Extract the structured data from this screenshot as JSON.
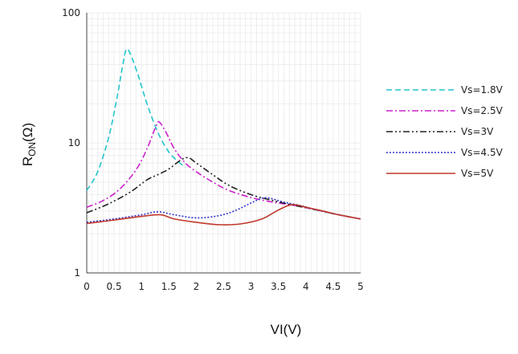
{
  "chart_data": {
    "type": "line",
    "title": "",
    "xlabel": "VI(V)",
    "ylabel_main": "R",
    "ylabel_sub": "ON",
    "ylabel_unit": "(Ω)",
    "y_scale": "log",
    "xlim": [
      0,
      5
    ],
    "ylim": [
      1,
      100
    ],
    "x_ticks": [
      "0",
      "0.5",
      "1",
      "1.5",
      "2",
      "2.5",
      "3",
      "3.5",
      "4",
      "4.5",
      "5"
    ],
    "y_ticks": [
      "1",
      "10",
      "100"
    ],
    "grid": true,
    "legend_position": "right",
    "series": [
      {
        "name": "Vs=1.8V",
        "color": "#22c4cc",
        "dash": "dashed",
        "x": [
          0,
          0.2,
          0.4,
          0.55,
          0.65,
          0.72,
          0.8,
          0.95,
          1.1,
          1.3,
          1.5,
          1.7,
          1.8
        ],
        "y": [
          4.3,
          6.0,
          11.0,
          22.0,
          38.0,
          52.0,
          48.0,
          32.0,
          20.0,
          12.0,
          8.5,
          7.0,
          6.5
        ]
      },
      {
        "name": "Vs=2.5V",
        "color": "#cc22cc",
        "dash": "dashdot",
        "x": [
          0,
          0.3,
          0.6,
          0.9,
          1.1,
          1.25,
          1.32,
          1.45,
          1.6,
          1.8,
          2.0,
          2.3,
          2.6,
          3.0,
          3.4,
          3.8,
          4.2,
          4.6,
          5.0
        ],
        "y": [
          3.2,
          3.6,
          4.4,
          6.2,
          9.0,
          13.0,
          14.5,
          12.0,
          9.0,
          7.0,
          6.0,
          5.0,
          4.3,
          3.8,
          3.5,
          3.3,
          3.05,
          2.8,
          2.6
        ]
      },
      {
        "name": "Vs=3V",
        "color": "#222222",
        "dash": "dashdotdot",
        "x": [
          0,
          0.4,
          0.8,
          1.1,
          1.3,
          1.5,
          1.7,
          1.85,
          2.0,
          2.3,
          2.6,
          3.0,
          3.4,
          3.8,
          4.2,
          4.6,
          5.0
        ],
        "y": [
          2.9,
          3.4,
          4.2,
          5.2,
          5.7,
          6.3,
          7.3,
          7.7,
          7.0,
          5.7,
          4.7,
          4.0,
          3.6,
          3.3,
          3.05,
          2.8,
          2.6
        ]
      },
      {
        "name": "Vs=4.5V",
        "color": "#3333cc",
        "dash": "dotted",
        "x": [
          0,
          0.5,
          1.0,
          1.3,
          1.6,
          2.0,
          2.4,
          2.7,
          3.0,
          3.2,
          3.35,
          3.6,
          3.9,
          4.2,
          4.6,
          5.0
        ],
        "y": [
          2.45,
          2.6,
          2.8,
          2.95,
          2.8,
          2.65,
          2.75,
          3.0,
          3.45,
          3.75,
          3.75,
          3.5,
          3.3,
          3.05,
          2.8,
          2.6
        ]
      },
      {
        "name": "Vs=5V",
        "color": "#c0392b",
        "dash": "solid",
        "x": [
          0,
          0.5,
          1.0,
          1.35,
          1.6,
          2.0,
          2.4,
          2.8,
          3.2,
          3.5,
          3.75,
          4.0,
          4.3,
          4.6,
          5.0
        ],
        "y": [
          2.4,
          2.55,
          2.72,
          2.8,
          2.6,
          2.45,
          2.35,
          2.38,
          2.6,
          3.05,
          3.35,
          3.2,
          3.0,
          2.8,
          2.6
        ]
      }
    ]
  }
}
